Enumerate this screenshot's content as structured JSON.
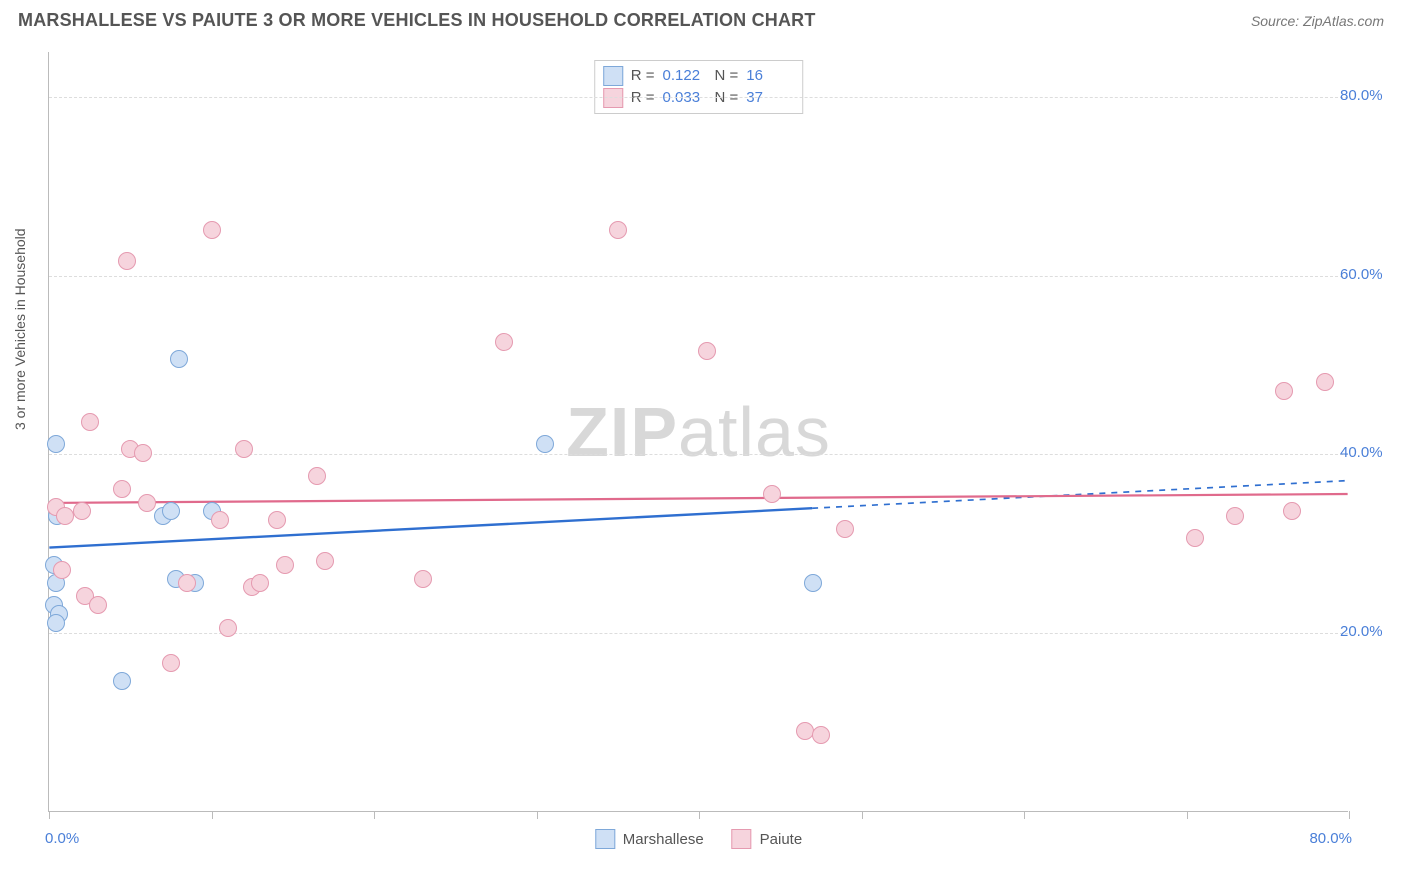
{
  "title": "MARSHALLESE VS PAIUTE 3 OR MORE VEHICLES IN HOUSEHOLD CORRELATION CHART",
  "source_label": "Source: ",
  "source_value": "ZipAtlas.com",
  "ylabel": "3 or more Vehicles in Household",
  "watermark_a": "ZIP",
  "watermark_b": "atlas",
  "chart": {
    "type": "scatter",
    "xlim": [
      0,
      80
    ],
    "ylim": [
      0,
      85
    ],
    "y_ticks": [
      20,
      40,
      60,
      80
    ],
    "y_tick_labels": [
      "20.0%",
      "40.0%",
      "60.0%",
      "80.0%"
    ],
    "x_tick_positions": [
      0,
      10,
      20,
      30,
      40,
      50,
      60,
      70,
      80
    ],
    "x_axis_min_label": "0.0%",
    "x_axis_max_label": "80.0%",
    "grid_color": "#dddddd",
    "axis_color": "#bbbbbb",
    "axis_label_color": "#4a7fd8",
    "ylabel_color": "#555555",
    "background_color": "#ffffff",
    "marker_radius": 9,
    "series": [
      {
        "name": "Marshallese",
        "fill": "#cfe0f5",
        "stroke": "#7ea8d9",
        "R_label": "R =",
        "R": "0.122",
        "N_label": "N =",
        "N": "16",
        "trend": {
          "y_at_xmin": 29.5,
          "y_at_xmax": 37.0,
          "solid_until_x": 47,
          "color": "#2f6fd0",
          "width": 2.4
        },
        "points": [
          {
            "x": 0.4,
            "y": 41.0
          },
          {
            "x": 0.5,
            "y": 33.0
          },
          {
            "x": 0.3,
            "y": 27.5
          },
          {
            "x": 0.4,
            "y": 25.5
          },
          {
            "x": 0.3,
            "y": 23.0
          },
          {
            "x": 0.6,
            "y": 22.0
          },
          {
            "x": 0.4,
            "y": 21.0
          },
          {
            "x": 4.5,
            "y": 14.5
          },
          {
            "x": 8.0,
            "y": 50.5
          },
          {
            "x": 7.0,
            "y": 33.0
          },
          {
            "x": 7.5,
            "y": 33.5
          },
          {
            "x": 10.0,
            "y": 33.5
          },
          {
            "x": 9.0,
            "y": 25.5
          },
          {
            "x": 30.5,
            "y": 41.0
          },
          {
            "x": 47.0,
            "y": 25.5
          },
          {
            "x": 7.8,
            "y": 26.0
          }
        ]
      },
      {
        "name": "Paiute",
        "fill": "#f6d4dd",
        "stroke": "#e59ab0",
        "R_label": "R =",
        "R": "0.033",
        "N_label": "N =",
        "N": "37",
        "trend": {
          "y_at_xmin": 34.5,
          "y_at_xmax": 35.5,
          "solid_until_x": 80,
          "color": "#e06a8c",
          "width": 2.2
        },
        "points": [
          {
            "x": 4.8,
            "y": 61.5
          },
          {
            "x": 2.5,
            "y": 43.5
          },
          {
            "x": 5.0,
            "y": 40.5
          },
          {
            "x": 5.8,
            "y": 40.0
          },
          {
            "x": 4.5,
            "y": 36.0
          },
          {
            "x": 2.0,
            "y": 33.5
          },
          {
            "x": 0.4,
            "y": 34.0
          },
          {
            "x": 1.0,
            "y": 33.0
          },
          {
            "x": 2.2,
            "y": 24.0
          },
          {
            "x": 3.0,
            "y": 23.0
          },
          {
            "x": 7.5,
            "y": 16.5
          },
          {
            "x": 10.0,
            "y": 65.0
          },
          {
            "x": 12.0,
            "y": 40.5
          },
          {
            "x": 10.5,
            "y": 32.5
          },
          {
            "x": 11.0,
            "y": 20.5
          },
          {
            "x": 8.5,
            "y": 25.5
          },
          {
            "x": 12.5,
            "y": 25.0
          },
          {
            "x": 14.0,
            "y": 32.5
          },
          {
            "x": 14.5,
            "y": 27.5
          },
          {
            "x": 13.0,
            "y": 25.5
          },
          {
            "x": 16.5,
            "y": 37.5
          },
          {
            "x": 17.0,
            "y": 28.0
          },
          {
            "x": 23.0,
            "y": 26.0
          },
          {
            "x": 28.0,
            "y": 52.5
          },
          {
            "x": 35.0,
            "y": 65.0
          },
          {
            "x": 40.5,
            "y": 51.5
          },
          {
            "x": 44.5,
            "y": 35.5
          },
          {
            "x": 46.5,
            "y": 9.0
          },
          {
            "x": 47.5,
            "y": 8.5
          },
          {
            "x": 49.0,
            "y": 31.5
          },
          {
            "x": 70.5,
            "y": 30.5
          },
          {
            "x": 73.0,
            "y": 33.0
          },
          {
            "x": 76.5,
            "y": 33.5
          },
          {
            "x": 76.0,
            "y": 47.0
          },
          {
            "x": 78.5,
            "y": 48.0
          },
          {
            "x": 0.8,
            "y": 27.0
          },
          {
            "x": 6.0,
            "y": 34.5
          }
        ]
      }
    ]
  }
}
